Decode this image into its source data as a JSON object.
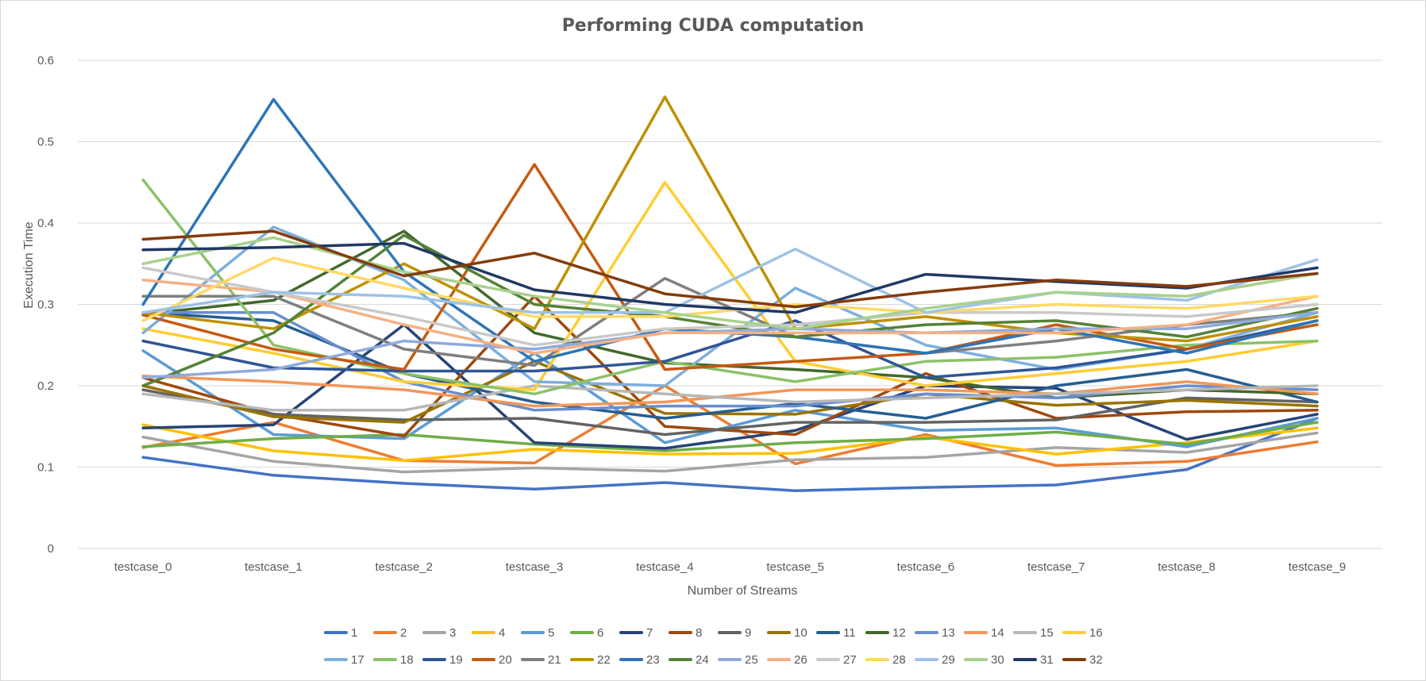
{
  "chart_data": {
    "type": "line",
    "title": "Performing CUDA computation",
    "xlabel": "Number of Streams",
    "ylabel": "Execution Time",
    "ylim": [
      0,
      0.6
    ],
    "yticks": [
      "0",
      "0.1",
      "0.2",
      "0.3",
      "0.4",
      "0.5",
      "0.6"
    ],
    "grid": true,
    "legend_position": "bottom",
    "categories": [
      "testcase_0",
      "testcase_1",
      "testcase_2",
      "testcase_3",
      "testcase_4",
      "testcase_5",
      "testcase_6",
      "testcase_7",
      "testcase_8",
      "testcase_9"
    ],
    "series": [
      {
        "name": "1",
        "color": "#4472C4",
        "values": [
          0.112,
          0.09,
          0.08,
          0.073,
          0.081,
          0.071,
          0.075,
          0.078,
          0.097,
          0.16
        ]
      },
      {
        "name": "2",
        "color": "#ED7D31",
        "values": [
          0.124,
          0.155,
          0.108,
          0.105,
          0.2,
          0.104,
          0.14,
          0.102,
          0.107,
          0.131
        ]
      },
      {
        "name": "3",
        "color": "#A5A5A5",
        "values": [
          0.137,
          0.107,
          0.094,
          0.099,
          0.095,
          0.109,
          0.112,
          0.124,
          0.118,
          0.142
        ]
      },
      {
        "name": "4",
        "color": "#FFC000",
        "values": [
          0.152,
          0.12,
          0.108,
          0.122,
          0.116,
          0.117,
          0.137,
          0.116,
          0.13,
          0.148
        ]
      },
      {
        "name": "5",
        "color": "#5B9BD5",
        "values": [
          0.243,
          0.14,
          0.135,
          0.24,
          0.13,
          0.17,
          0.145,
          0.148,
          0.125,
          0.16
        ]
      },
      {
        "name": "6",
        "color": "#70AD47",
        "values": [
          0.125,
          0.135,
          0.14,
          0.128,
          0.12,
          0.13,
          0.135,
          0.143,
          0.128,
          0.155
        ]
      },
      {
        "name": "7",
        "color": "#264478",
        "values": [
          0.148,
          0.152,
          0.275,
          0.13,
          0.123,
          0.145,
          0.2,
          0.197,
          0.134,
          0.165
        ]
      },
      {
        "name": "8",
        "color": "#9E480E",
        "values": [
          0.21,
          0.165,
          0.138,
          0.31,
          0.15,
          0.14,
          0.215,
          0.16,
          0.168,
          0.17
        ]
      },
      {
        "name": "9",
        "color": "#636363",
        "values": [
          0.195,
          0.165,
          0.158,
          0.16,
          0.14,
          0.155,
          0.155,
          0.158,
          0.185,
          0.18
        ]
      },
      {
        "name": "10",
        "color": "#997300",
        "values": [
          0.2,
          0.162,
          0.155,
          0.23,
          0.166,
          0.165,
          0.19,
          0.176,
          0.182,
          0.175
        ]
      },
      {
        "name": "11",
        "color": "#255E91",
        "values": [
          0.29,
          0.28,
          0.215,
          0.18,
          0.16,
          0.178,
          0.16,
          0.2,
          0.22,
          0.18
        ]
      },
      {
        "name": "12",
        "color": "#43682B",
        "values": [
          0.288,
          0.305,
          0.39,
          0.265,
          0.228,
          0.22,
          0.21,
          0.185,
          0.195,
          0.19
        ]
      },
      {
        "name": "13",
        "color": "#698ED0",
        "values": [
          0.29,
          0.29,
          0.205,
          0.17,
          0.175,
          0.175,
          0.19,
          0.185,
          0.2,
          0.195
        ]
      },
      {
        "name": "14",
        "color": "#F1975A",
        "values": [
          0.212,
          0.205,
          0.195,
          0.175,
          0.18,
          0.195,
          0.195,
          0.19,
          0.205,
          0.19
        ]
      },
      {
        "name": "15",
        "color": "#B7B7B7",
        "values": [
          0.19,
          0.17,
          0.17,
          0.2,
          0.19,
          0.18,
          0.185,
          0.19,
          0.195,
          0.2
        ]
      },
      {
        "name": "16",
        "color": "#FFCD33",
        "values": [
          0.27,
          0.24,
          0.205,
          0.195,
          0.45,
          0.23,
          0.2,
          0.215,
          0.23,
          0.255
        ]
      },
      {
        "name": "17",
        "color": "#7CAFDD",
        "values": [
          0.265,
          0.395,
          0.33,
          0.205,
          0.2,
          0.32,
          0.25,
          0.22,
          0.245,
          0.29
        ]
      },
      {
        "name": "18",
        "color": "#8CC168",
        "values": [
          0.453,
          0.25,
          0.215,
          0.19,
          0.23,
          0.205,
          0.23,
          0.235,
          0.25,
          0.255
        ]
      },
      {
        "name": "19",
        "color": "#2F5597",
        "values": [
          0.255,
          0.222,
          0.218,
          0.218,
          0.23,
          0.28,
          0.21,
          0.222,
          0.245,
          0.28
        ]
      },
      {
        "name": "20",
        "color": "#C55A11",
        "values": [
          0.287,
          0.245,
          0.22,
          0.472,
          0.22,
          0.23,
          0.24,
          0.275,
          0.245,
          0.275
        ]
      },
      {
        "name": "21",
        "color": "#7F7F7F",
        "values": [
          0.31,
          0.31,
          0.245,
          0.225,
          0.332,
          0.26,
          0.24,
          0.255,
          0.275,
          0.29
        ]
      },
      {
        "name": "22",
        "color": "#BF9000",
        "values": [
          0.29,
          0.27,
          0.35,
          0.27,
          0.555,
          0.27,
          0.285,
          0.265,
          0.255,
          0.285
        ]
      },
      {
        "name": "23",
        "color": "#2E75B6",
        "values": [
          0.3,
          0.552,
          0.34,
          0.23,
          0.27,
          0.26,
          0.24,
          0.27,
          0.24,
          0.28
        ]
      },
      {
        "name": "24",
        "color": "#548235",
        "values": [
          0.2,
          0.265,
          0.385,
          0.3,
          0.285,
          0.26,
          0.275,
          0.28,
          0.26,
          0.295
        ]
      },
      {
        "name": "25",
        "color": "#8FAADC",
        "values": [
          0.21,
          0.22,
          0.255,
          0.245,
          0.265,
          0.27,
          0.265,
          0.27,
          0.27,
          0.29
        ]
      },
      {
        "name": "26",
        "color": "#F4B183",
        "values": [
          0.33,
          0.315,
          0.275,
          0.24,
          0.265,
          0.265,
          0.265,
          0.265,
          0.275,
          0.31
        ]
      },
      {
        "name": "27",
        "color": "#C9C9C9",
        "values": [
          0.345,
          0.315,
          0.285,
          0.25,
          0.27,
          0.275,
          0.29,
          0.29,
          0.285,
          0.3
        ]
      },
      {
        "name": "28",
        "color": "#FFD966",
        "values": [
          0.28,
          0.357,
          0.32,
          0.285,
          0.285,
          0.3,
          0.29,
          0.3,
          0.295,
          0.31
        ]
      },
      {
        "name": "29",
        "color": "#9DC3E6",
        "values": [
          0.29,
          0.315,
          0.31,
          0.29,
          0.29,
          0.368,
          0.29,
          0.315,
          0.305,
          0.355
        ]
      },
      {
        "name": "30",
        "color": "#A9D18E",
        "values": [
          0.35,
          0.382,
          0.34,
          0.31,
          0.29,
          0.27,
          0.295,
          0.315,
          0.31,
          0.338
        ]
      },
      {
        "name": "31",
        "color": "#203864",
        "values": [
          0.367,
          0.37,
          0.375,
          0.318,
          0.3,
          0.29,
          0.337,
          0.328,
          0.32,
          0.345
        ]
      },
      {
        "name": "32",
        "color": "#843C0C",
        "values": [
          0.38,
          0.39,
          0.335,
          0.363,
          0.313,
          0.297,
          0.315,
          0.33,
          0.322,
          0.338
        ]
      }
    ]
  }
}
